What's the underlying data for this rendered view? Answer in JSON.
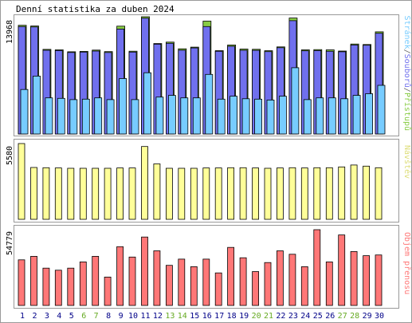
{
  "title": "Denní statistika za duben 2024",
  "colors": {
    "background": "#ffffff",
    "frame": "#999999",
    "hits": "#88cc44",
    "files": "#7070ee",
    "pages": "#77ccff",
    "visits": "#ffff99",
    "kbytes": "#ff7777",
    "weekend": "#66aa22",
    "weekday": "#000088"
  },
  "chart_data": [
    {
      "type": "bar",
      "panel": "hits-files-pages",
      "ymax_label": "13968",
      "ylim": [
        0,
        13968
      ],
      "legend": {
        "pages": "Stránek",
        "sep1": "/",
        "files": "Souborů",
        "sep2": "/",
        "hits": "Přístupů"
      },
      "x": [
        "1",
        "2",
        "3",
        "4",
        "5",
        "6",
        "7",
        "8",
        "9",
        "10",
        "11",
        "12",
        "13",
        "14",
        "15",
        "16",
        "17",
        "18",
        "19",
        "20",
        "21",
        "22",
        "23",
        "24",
        "25",
        "26",
        "27",
        "28",
        "29",
        "30"
      ],
      "weekend_days": [
        "6",
        "7",
        "13",
        "14",
        "20",
        "21",
        "27",
        "28"
      ],
      "series": [
        {
          "name": "Přístupů",
          "values": [
            12950,
            12870,
            10080,
            10020,
            9800,
            9840,
            10000,
            9820,
            12850,
            9860,
            13968,
            10780,
            10950,
            10150,
            10350,
            13450,
            9930,
            10600,
            10120,
            10090,
            9920,
            10380,
            13820,
            10020,
            10050,
            10020,
            9880,
            10720,
            10660,
            12170
          ]
        },
        {
          "name": "Souborů",
          "values": [
            12800,
            12750,
            9980,
            9940,
            9710,
            9760,
            9880,
            9710,
            12500,
            9760,
            13800,
            10700,
            10800,
            9990,
            10250,
            12800,
            9850,
            10450,
            9980,
            9970,
            9820,
            10280,
            13500,
            9910,
            9940,
            9850,
            9800,
            10600,
            10580,
            12000
          ]
        },
        {
          "name": "Stránek",
          "values": [
            5300,
            6900,
            4300,
            4250,
            4100,
            4150,
            4300,
            4100,
            6600,
            4100,
            7300,
            4400,
            4600,
            4300,
            4300,
            7100,
            4150,
            4500,
            4200,
            4150,
            4050,
            4500,
            7900,
            4100,
            4300,
            4300,
            4200,
            4600,
            4800,
            5800
          ]
        }
      ]
    },
    {
      "type": "bar",
      "panel": "visits",
      "ymax_label": "5580",
      "ylim": [
        0,
        5580
      ],
      "legend": "Návštěv",
      "series": [
        {
          "name": "Návštěv",
          "values": [
            5580,
            3820,
            3800,
            3780,
            3760,
            3760,
            3760,
            3760,
            3780,
            3780,
            5360,
            4080,
            3760,
            3760,
            3760,
            3780,
            3780,
            3800,
            3800,
            3780,
            3760,
            3780,
            3800,
            3780,
            3800,
            3800,
            3860,
            4000,
            3920,
            3800
          ]
        }
      ]
    },
    {
      "type": "bar",
      "panel": "kbytes",
      "ymax_label": "54779",
      "ylim": [
        0,
        54779
      ],
      "legend": "Objem přenosu",
      "series": [
        {
          "name": "Objem přenosu",
          "values": [
            33000,
            35500,
            27000,
            25500,
            27000,
            31500,
            35500,
            20500,
            42500,
            35000,
            49500,
            39500,
            29000,
            33500,
            28000,
            33500,
            23500,
            42000,
            34500,
            24500,
            31000,
            39500,
            37000,
            28000,
            54779,
            31500,
            51000,
            39000,
            36000,
            36500
          ]
        }
      ]
    }
  ]
}
